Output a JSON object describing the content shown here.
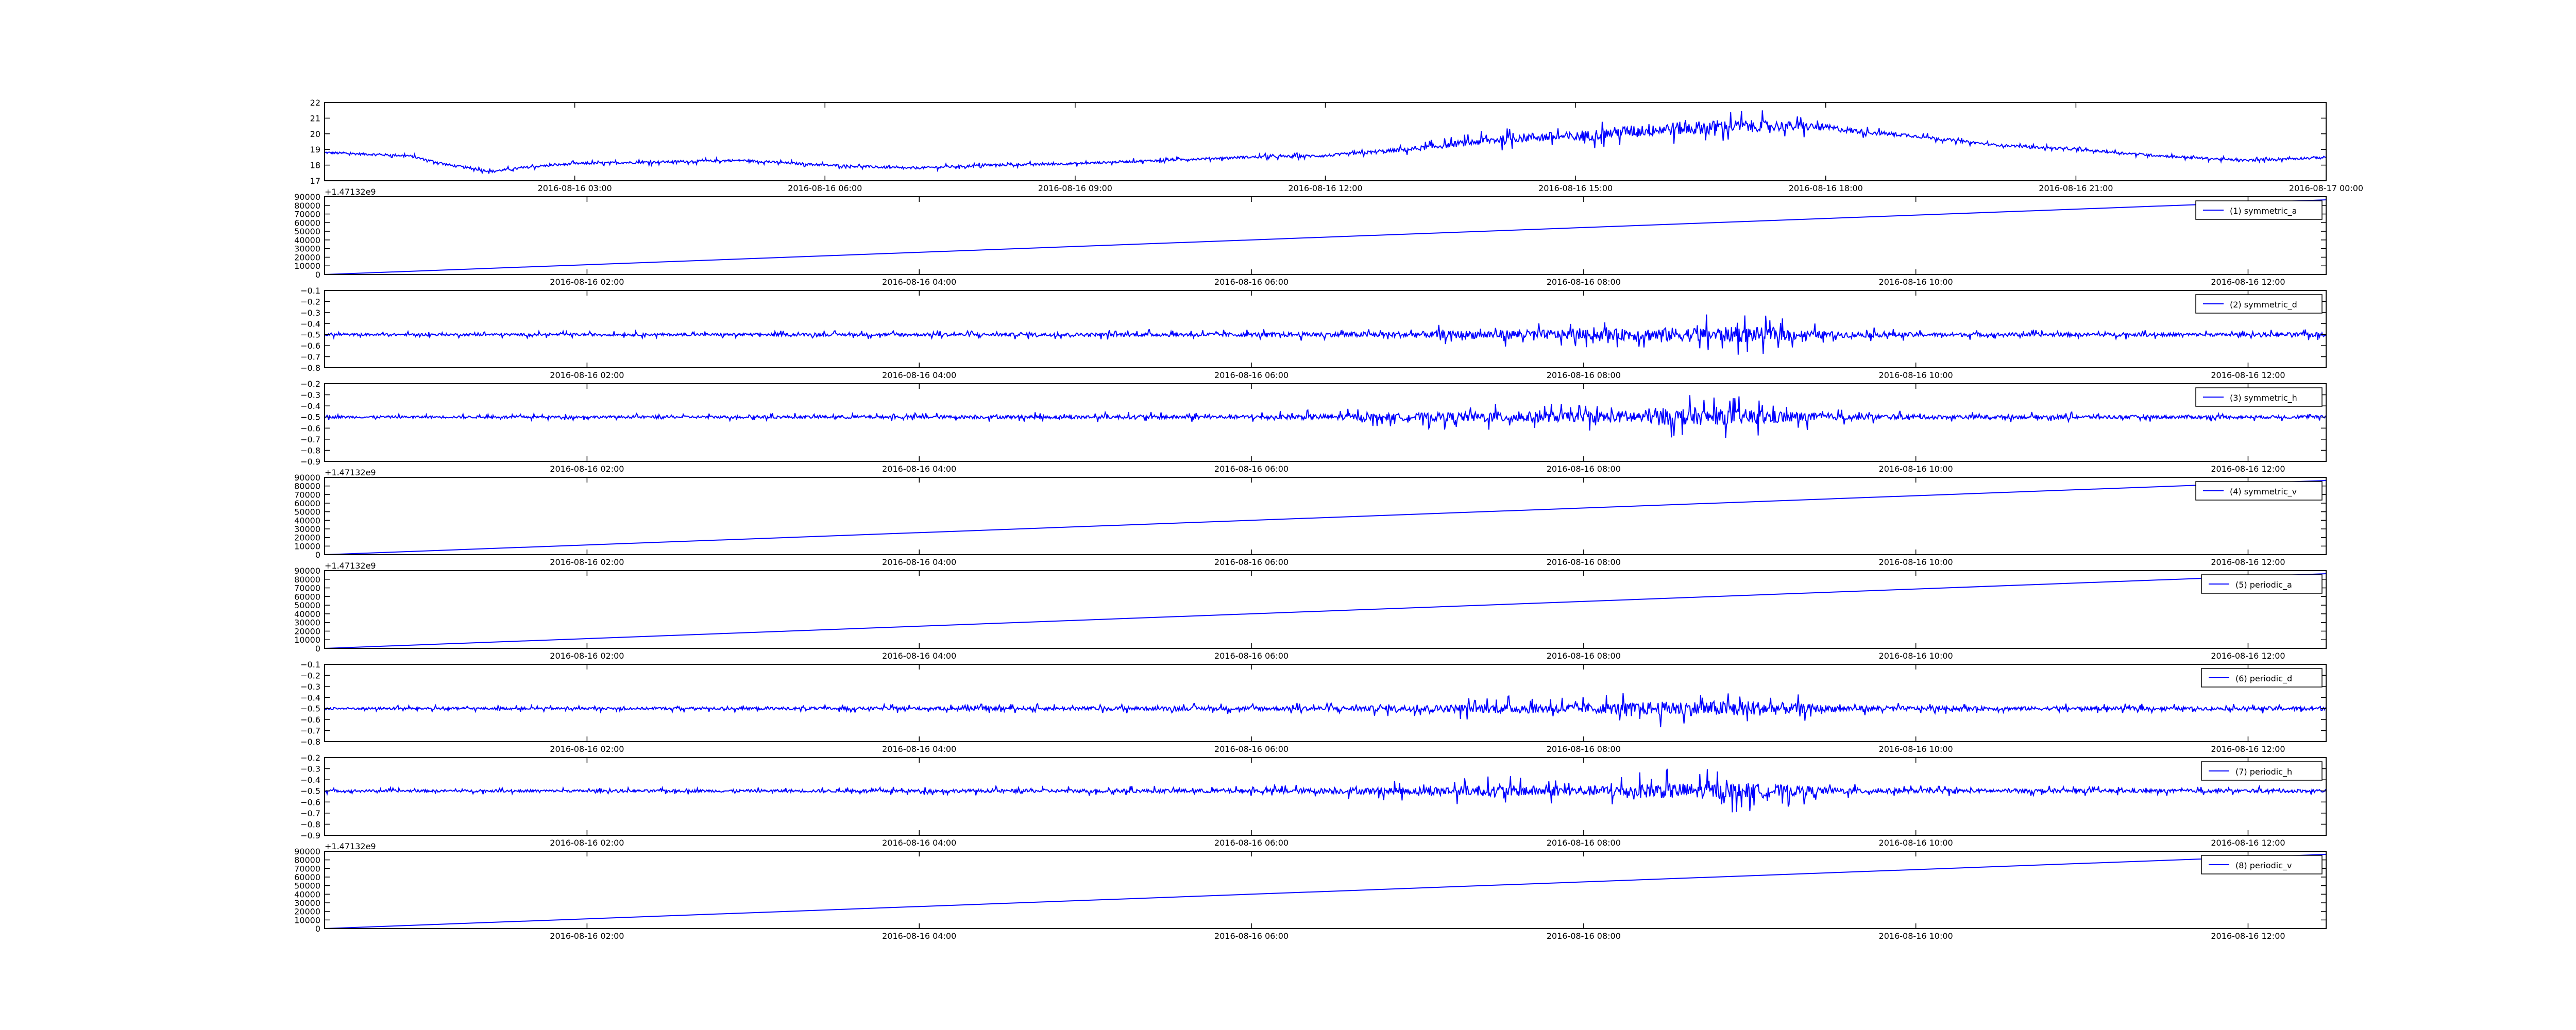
{
  "chart_data": [
    {
      "id": "temperature",
      "type": "line",
      "color": "#0000ff",
      "legend": "",
      "y_offset_label": "",
      "yticks": [
        "17",
        "18",
        "19",
        "20",
        "21",
        "22"
      ],
      "ylim": [
        17,
        22
      ],
      "xticks": [
        "2016-08-16 03:00",
        "2016-08-16 06:00",
        "2016-08-16 09:00",
        "2016-08-16 12:00",
        "2016-08-16 15:00",
        "2016-08-16 18:00",
        "2016-08-16 21:00",
        "2016-08-17 00:00"
      ],
      "x_range_hours": [
        0,
        24
      ],
      "xtick_hours": [
        3,
        6,
        9,
        12,
        15,
        18,
        21,
        24
      ],
      "series": [
        {
          "x_hours": [
            0,
            1,
            1.5,
            2,
            2.5,
            3,
            4,
            5,
            6,
            7,
            8,
            9,
            10,
            11,
            12,
            12.5,
            13,
            13.5,
            14,
            14.5,
            15,
            15.5,
            16,
            16.5,
            17,
            17.5,
            18,
            18.5,
            19,
            19.5,
            20,
            21,
            22,
            23,
            24
          ],
          "values": [
            18.8,
            18.6,
            18.0,
            17.6,
            17.9,
            18.1,
            18.2,
            18.3,
            18.0,
            17.8,
            18.0,
            18.1,
            18.3,
            18.5,
            18.6,
            18.8,
            19.0,
            19.3,
            19.6,
            19.8,
            19.8,
            20.1,
            20.3,
            20.4,
            20.5,
            20.5,
            20.4,
            20.1,
            19.9,
            19.6,
            19.3,
            19.0,
            18.6,
            18.3,
            18.5
          ],
          "noise_amplitude": [
            0.2,
            0.2,
            0.2,
            0.2,
            0.2,
            0.2,
            0.2,
            0.2,
            0.2,
            0.2,
            0.2,
            0.2,
            0.2,
            0.2,
            0.25,
            0.3,
            0.4,
            0.5,
            0.7,
            0.8,
            0.9,
            1.0,
            1.2,
            1.2,
            1.1,
            0.9,
            0.6,
            0.4,
            0.3,
            0.25,
            0.2,
            0.2,
            0.2,
            0.2,
            0.2
          ]
        }
      ]
    },
    {
      "id": "symmetric_a",
      "type": "line",
      "color": "#0000ff",
      "legend": "(1) symmetric_a",
      "y_offset_label": "+1.47132e9",
      "yticks": [
        "0",
        "10000",
        "20000",
        "30000",
        "40000",
        "50000",
        "60000",
        "70000",
        "80000",
        "90000"
      ],
      "ylim": [
        0,
        90000
      ],
      "xticks": [
        "2016-08-16 02:00",
        "2016-08-16 04:00",
        "2016-08-16 06:00",
        "2016-08-16 08:00",
        "2016-08-16 10:00",
        "2016-08-16 12:00"
      ],
      "x_range_hours": [
        0.42,
        12.47
      ],
      "xtick_hours": [
        2,
        4,
        6,
        8,
        10,
        12
      ],
      "series": [
        {
          "x_hours": [
            0.42,
            12.47
          ],
          "values": [
            0,
            86400
          ]
        }
      ]
    },
    {
      "id": "symmetric_d",
      "type": "line",
      "color": "#0000ff",
      "legend": "(2) symmetric_d",
      "y_offset_label": "",
      "yticks": [
        "−0.8",
        "−0.7",
        "−0.6",
        "−0.5",
        "−0.4",
        "−0.3",
        "−0.2",
        "−0.1"
      ],
      "ylim": [
        -0.8,
        -0.1
      ],
      "xticks": [
        "2016-08-16 02:00",
        "2016-08-16 04:00",
        "2016-08-16 06:00",
        "2016-08-16 08:00",
        "2016-08-16 10:00",
        "2016-08-16 12:00"
      ],
      "x_range_hours": [
        0.42,
        12.47
      ],
      "xtick_hours": [
        2,
        4,
        6,
        8,
        10,
        12
      ],
      "series": [
        {
          "x_hours": [
            0.42,
            2,
            4,
            6,
            6.5,
            7,
            7.5,
            8,
            8.5,
            9,
            9.5,
            10,
            12,
            12.47
          ],
          "values": [
            -0.5,
            -0.5,
            -0.5,
            -0.5,
            -0.5,
            -0.5,
            -0.5,
            -0.5,
            -0.5,
            -0.5,
            -0.5,
            -0.5,
            -0.5,
            -0.5
          ],
          "noise_amplitude": [
            0.03,
            0.03,
            0.04,
            0.05,
            0.06,
            0.08,
            0.12,
            0.12,
            0.18,
            0.2,
            0.08,
            0.05,
            0.04,
            0.06
          ]
        }
      ]
    },
    {
      "id": "symmetric_h",
      "type": "line",
      "color": "#0000ff",
      "legend": "(3) symmetric_h",
      "y_offset_label": "",
      "yticks": [
        "−0.9",
        "−0.8",
        "−0.7",
        "−0.6",
        "−0.5",
        "−0.4",
        "−0.3",
        "−0.2"
      ],
      "ylim": [
        -0.9,
        -0.2
      ],
      "xticks": [
        "2016-08-16 02:00",
        "2016-08-16 04:00",
        "2016-08-16 06:00",
        "2016-08-16 08:00",
        "2016-08-16 10:00",
        "2016-08-16 12:00"
      ],
      "x_range_hours": [
        0.42,
        12.47
      ],
      "xtick_hours": [
        2,
        4,
        6,
        8,
        10,
        12
      ],
      "series": [
        {
          "x_hours": [
            0.42,
            2,
            4,
            6,
            6.5,
            7,
            7.5,
            8,
            8.5,
            9,
            9.5,
            10,
            12,
            12.47
          ],
          "values": [
            -0.5,
            -0.5,
            -0.5,
            -0.5,
            -0.5,
            -0.5,
            -0.5,
            -0.5,
            -0.5,
            -0.5,
            -0.5,
            -0.5,
            -0.5,
            -0.5
          ],
          "noise_amplitude": [
            0.03,
            0.03,
            0.04,
            0.05,
            0.07,
            0.1,
            0.14,
            0.12,
            0.2,
            0.2,
            0.08,
            0.05,
            0.04,
            0.04
          ]
        }
      ]
    },
    {
      "id": "symmetric_v",
      "type": "line",
      "color": "#0000ff",
      "legend": "(4) symmetric_v",
      "y_offset_label": "+1.47132e9",
      "yticks": [
        "0",
        "10000",
        "20000",
        "30000",
        "40000",
        "50000",
        "60000",
        "70000",
        "80000",
        "90000"
      ],
      "ylim": [
        0,
        90000
      ],
      "xticks": [
        "2016-08-16 02:00",
        "2016-08-16 04:00",
        "2016-08-16 06:00",
        "2016-08-16 08:00",
        "2016-08-16 10:00",
        "2016-08-16 12:00"
      ],
      "x_range_hours": [
        0.42,
        12.47
      ],
      "xtick_hours": [
        2,
        4,
        6,
        8,
        10,
        12
      ],
      "series": [
        {
          "x_hours": [
            0.42,
            12.47
          ],
          "values": [
            0,
            86400
          ]
        }
      ]
    },
    {
      "id": "periodic_a",
      "type": "line",
      "color": "#0000ff",
      "legend": "(5) periodic_a",
      "y_offset_label": "+1.47132e9",
      "yticks": [
        "0",
        "10000",
        "20000",
        "30000",
        "40000",
        "50000",
        "60000",
        "70000",
        "80000",
        "90000"
      ],
      "ylim": [
        0,
        90000
      ],
      "xticks": [
        "2016-08-16 02:00",
        "2016-08-16 04:00",
        "2016-08-16 06:00",
        "2016-08-16 08:00",
        "2016-08-16 10:00",
        "2016-08-16 12:00"
      ],
      "x_range_hours": [
        0.42,
        12.47
      ],
      "xtick_hours": [
        2,
        4,
        6,
        8,
        10,
        12
      ],
      "series": [
        {
          "x_hours": [
            0.42,
            12.47
          ],
          "values": [
            0,
            86400
          ]
        }
      ]
    },
    {
      "id": "periodic_d",
      "type": "line",
      "color": "#0000ff",
      "legend": "(6) periodic_d",
      "y_offset_label": "",
      "yticks": [
        "−0.8",
        "−0.7",
        "−0.6",
        "−0.5",
        "−0.4",
        "−0.3",
        "−0.2",
        "−0.1"
      ],
      "ylim": [
        -0.8,
        -0.1
      ],
      "xticks": [
        "2016-08-16 02:00",
        "2016-08-16 04:00",
        "2016-08-16 06:00",
        "2016-08-16 08:00",
        "2016-08-16 10:00",
        "2016-08-16 12:00"
      ],
      "x_range_hours": [
        0.42,
        12.47
      ],
      "xtick_hours": [
        2,
        4,
        6,
        8,
        10,
        12
      ],
      "series": [
        {
          "x_hours": [
            0.42,
            2,
            4,
            6,
            6.5,
            7,
            7.5,
            8,
            8.5,
            9,
            9.5,
            10,
            12,
            12.47
          ],
          "values": [
            -0.5,
            -0.5,
            -0.5,
            -0.5,
            -0.5,
            -0.5,
            -0.5,
            -0.5,
            -0.5,
            -0.5,
            -0.5,
            -0.5,
            -0.5,
            -0.5
          ],
          "noise_amplitude": [
            0.03,
            0.03,
            0.04,
            0.05,
            0.06,
            0.08,
            0.12,
            0.12,
            0.18,
            0.2,
            0.08,
            0.05,
            0.04,
            0.06
          ]
        }
      ]
    },
    {
      "id": "periodic_h",
      "type": "line",
      "color": "#0000ff",
      "legend": "(7) periodic_h",
      "y_offset_label": "",
      "yticks": [
        "−0.9",
        "−0.8",
        "−0.7",
        "−0.6",
        "−0.5",
        "−0.4",
        "−0.3",
        "−0.2"
      ],
      "ylim": [
        -0.9,
        -0.2
      ],
      "xticks": [
        "2016-08-16 02:00",
        "2016-08-16 04:00",
        "2016-08-16 06:00",
        "2016-08-16 08:00",
        "2016-08-16 10:00",
        "2016-08-16 12:00"
      ],
      "x_range_hours": [
        0.42,
        12.47
      ],
      "xtick_hours": [
        2,
        4,
        6,
        8,
        10,
        12
      ],
      "series": [
        {
          "x_hours": [
            0.42,
            2,
            4,
            6,
            6.5,
            7,
            7.5,
            8,
            8.5,
            9,
            9.5,
            10,
            12,
            12.47
          ],
          "values": [
            -0.5,
            -0.5,
            -0.5,
            -0.5,
            -0.5,
            -0.5,
            -0.5,
            -0.5,
            -0.5,
            -0.5,
            -0.5,
            -0.5,
            -0.5,
            -0.5
          ],
          "noise_amplitude": [
            0.03,
            0.03,
            0.04,
            0.05,
            0.07,
            0.1,
            0.14,
            0.12,
            0.2,
            0.2,
            0.08,
            0.05,
            0.04,
            0.04
          ]
        }
      ]
    },
    {
      "id": "periodic_v",
      "type": "line",
      "color": "#0000ff",
      "legend": "(8) periodic_v",
      "y_offset_label": "+1.47132e9",
      "yticks": [
        "0",
        "10000",
        "20000",
        "30000",
        "40000",
        "50000",
        "60000",
        "70000",
        "80000",
        "90000"
      ],
      "ylim": [
        0,
        90000
      ],
      "xticks": [
        "2016-08-16 02:00",
        "2016-08-16 04:00",
        "2016-08-16 06:00",
        "2016-08-16 08:00",
        "2016-08-16 10:00",
        "2016-08-16 12:00"
      ],
      "x_range_hours": [
        0.42,
        12.47
      ],
      "xtick_hours": [
        2,
        4,
        6,
        8,
        10,
        12
      ],
      "series": [
        {
          "x_hours": [
            0.42,
            12.47
          ],
          "values": [
            0,
            86400
          ]
        }
      ]
    }
  ]
}
